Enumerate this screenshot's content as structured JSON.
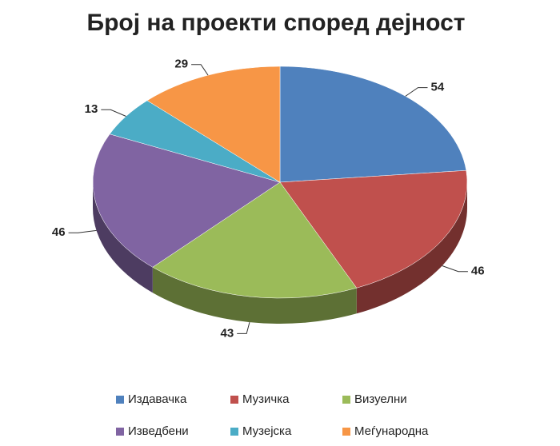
{
  "chart_data": {
    "type": "pie3d",
    "title": "Број на проекти според дејност",
    "categories": [
      "Издавачка",
      "Музичка",
      "Визуелни",
      "Изведбени",
      "Музејска",
      "Меѓународна"
    ],
    "values": [
      54,
      46,
      43,
      46,
      13,
      29
    ],
    "colors": [
      "#4f81bd",
      "#c0504d",
      "#9bbb59",
      "#8064a2",
      "#4bacc6",
      "#f79646"
    ],
    "legend": "bottom"
  }
}
